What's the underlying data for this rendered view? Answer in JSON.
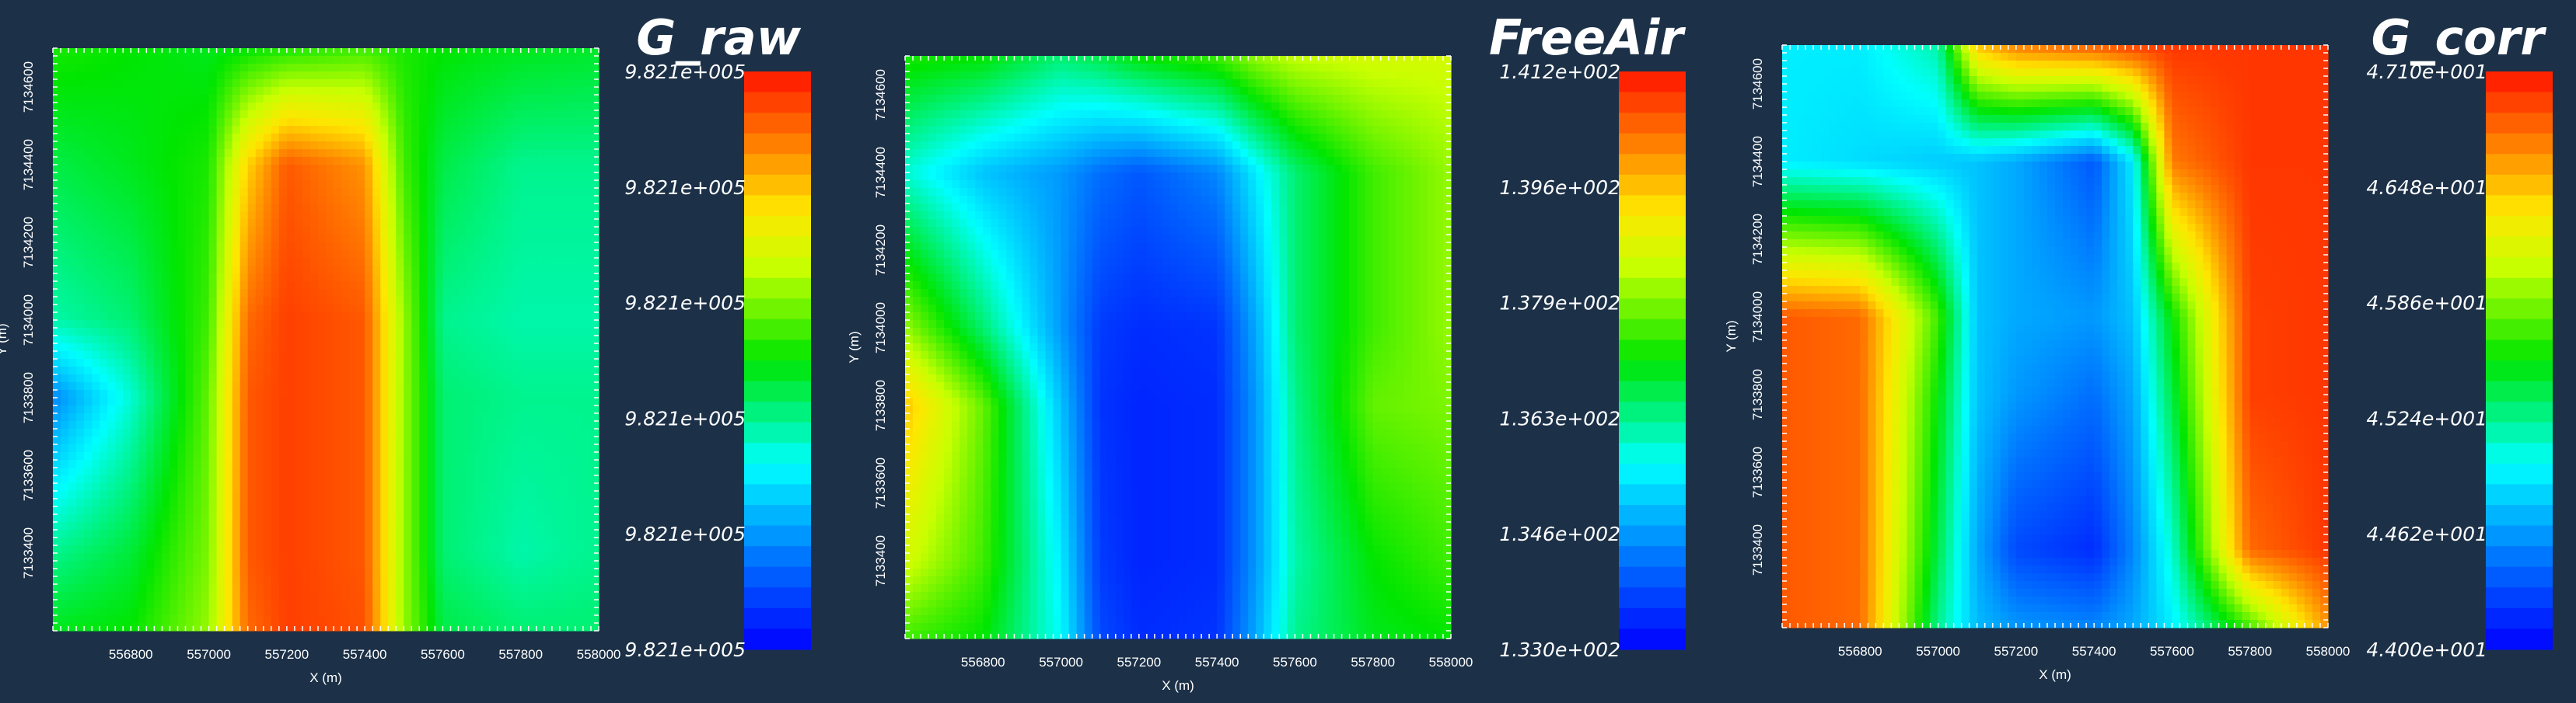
{
  "chart_data": [
    {
      "type": "heatmap",
      "title": "G_raw",
      "xlabel": "X (m)",
      "ylabel": "Y (m)",
      "xticks": [
        "556800",
        "557000",
        "557200",
        "557400",
        "557600",
        "557800",
        "558000"
      ],
      "yticks": [
        "7133400",
        "7133600",
        "7133800",
        "7134000",
        "7134200",
        "7134400",
        "7134600"
      ],
      "xlim": [
        556600,
        558000
      ],
      "ylim": [
        7133200,
        7134700
      ],
      "colorbar": {
        "min": "9.821e+005",
        "max": "9.821e+005",
        "labels": [
          "9.821e+005",
          "9.821e+005",
          "9.821e+005",
          "9.821e+005",
          "9.821e+005",
          "9.821e+005"
        ]
      },
      "grid_x": [
        556600,
        556800,
        557000,
        557100,
        557200,
        557400,
        557500,
        557600,
        557800,
        558000
      ],
      "grid_y": [
        7134700,
        7134400,
        7134000,
        7133800,
        7133400,
        7133200
      ],
      "grid_values": [
        [
          0.52,
          0.5,
          0.48,
          0.5,
          0.52,
          0.55,
          0.52,
          0.5,
          0.48,
          0.47
        ],
        [
          0.45,
          0.48,
          0.52,
          0.78,
          0.92,
          0.85,
          0.55,
          0.45,
          0.4,
          0.4
        ],
        [
          0.38,
          0.42,
          0.55,
          0.9,
          0.95,
          0.92,
          0.62,
          0.4,
          0.38,
          0.38
        ],
        [
          0.18,
          0.35,
          0.58,
          0.92,
          0.95,
          0.92,
          0.62,
          0.42,
          0.4,
          0.4
        ],
        [
          0.4,
          0.46,
          0.6,
          0.92,
          0.95,
          0.92,
          0.62,
          0.42,
          0.38,
          0.4
        ],
        [
          0.48,
          0.5,
          0.62,
          0.9,
          0.95,
          0.93,
          0.62,
          0.45,
          0.42,
          0.42
        ]
      ]
    },
    {
      "type": "heatmap",
      "title": "FreeAir",
      "xlabel": "X (m)",
      "ylabel": "Y (m)",
      "xticks": [
        "556800",
        "557000",
        "557200",
        "557400",
        "557600",
        "557800",
        "558000"
      ],
      "yticks": [
        "7133400",
        "7133600",
        "7133800",
        "7134000",
        "7134200",
        "7134400",
        "7134600"
      ],
      "xlim": [
        556600,
        558000
      ],
      "ylim": [
        7133200,
        7134700
      ],
      "colorbar": {
        "min": "1.330e+002",
        "max": "1.412e+002",
        "labels": [
          "1.412e+002",
          "1.396e+002",
          "1.379e+002",
          "1.363e+002",
          "1.346e+002",
          "1.330e+002"
        ]
      },
      "grid_x": [
        556600,
        556800,
        557000,
        557100,
        557200,
        557400,
        557500,
        557600,
        557800,
        558000
      ],
      "grid_y": [
        7134700,
        7134400,
        7134000,
        7133800,
        7133400,
        7133200
      ],
      "grid_values": [
        [
          0.52,
          0.5,
          0.42,
          0.45,
          0.5,
          0.55,
          0.62,
          0.66,
          0.68,
          0.68
        ],
        [
          0.35,
          0.25,
          0.2,
          0.15,
          0.12,
          0.18,
          0.3,
          0.42,
          0.55,
          0.62
        ],
        [
          0.62,
          0.42,
          0.2,
          0.08,
          0.06,
          0.07,
          0.22,
          0.42,
          0.55,
          0.62
        ],
        [
          0.8,
          0.58,
          0.25,
          0.07,
          0.05,
          0.06,
          0.2,
          0.4,
          0.58,
          0.6
        ],
        [
          0.68,
          0.55,
          0.3,
          0.08,
          0.05,
          0.06,
          0.2,
          0.38,
          0.5,
          0.55
        ],
        [
          0.55,
          0.5,
          0.32,
          0.1,
          0.06,
          0.07,
          0.22,
          0.4,
          0.48,
          0.5
        ]
      ]
    },
    {
      "type": "heatmap",
      "title": "G_corr",
      "xlabel": "X (m)",
      "ylabel": "Y (m)",
      "xticks": [
        "556800",
        "557000",
        "557200",
        "557400",
        "557600",
        "557800",
        "558000"
      ],
      "yticks": [
        "7133400",
        "7133600",
        "7133800",
        "7134000",
        "7134200",
        "7134400",
        "7134600"
      ],
      "xlim": [
        556600,
        558000
      ],
      "ylim": [
        7133200,
        7134700
      ],
      "colorbar": {
        "min": "4.400e+001",
        "max": "4.710e+001",
        "labels": [
          "4.710e+001",
          "4.648e+001",
          "4.586e+001",
          "4.524e+001",
          "4.462e+001",
          "4.400e+001"
        ]
      },
      "grid_x": [
        556600,
        556800,
        557000,
        557100,
        557200,
        557400,
        557500,
        557600,
        557800,
        558000
      ],
      "grid_y": [
        7134700,
        7134400,
        7134000,
        7133800,
        7133400,
        7133200
      ],
      "grid_values": [
        [
          0.3,
          0.3,
          0.38,
          0.8,
          0.88,
          0.92,
          0.95,
          0.96,
          0.96,
          0.96
        ],
        [
          0.3,
          0.28,
          0.26,
          0.25,
          0.22,
          0.12,
          0.3,
          0.88,
          0.96,
          0.96
        ],
        [
          0.92,
          0.9,
          0.55,
          0.25,
          0.22,
          0.2,
          0.25,
          0.5,
          0.95,
          0.96
        ],
        [
          0.92,
          0.9,
          0.5,
          0.25,
          0.2,
          0.15,
          0.22,
          0.45,
          0.95,
          0.96
        ],
        [
          0.92,
          0.9,
          0.45,
          0.22,
          0.1,
          0.06,
          0.18,
          0.35,
          0.9,
          0.96
        ],
        [
          0.92,
          0.9,
          0.4,
          0.24,
          0.2,
          0.18,
          0.22,
          0.3,
          0.55,
          0.85
        ]
      ]
    }
  ]
}
